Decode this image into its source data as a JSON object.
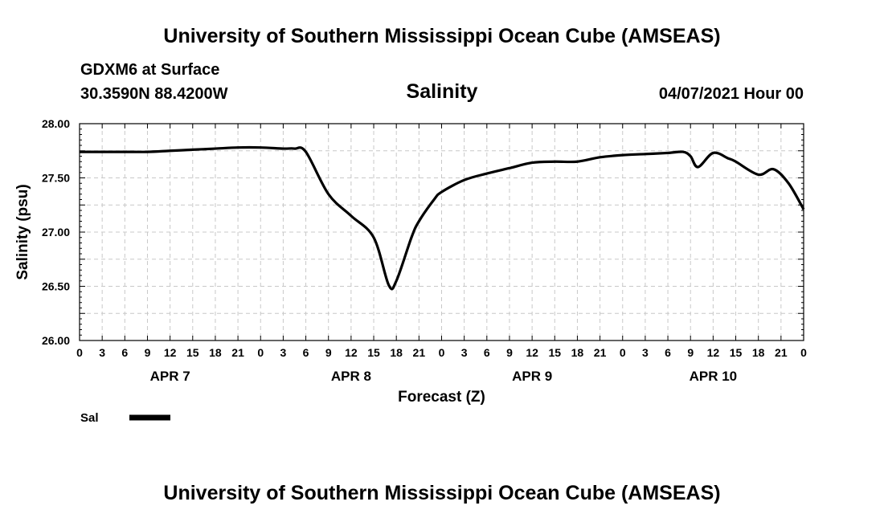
{
  "header": {
    "title": "University of Southern Mississippi Ocean Cube (AMSEAS)",
    "station": "GDXM6 at Surface",
    "coords": "30.3590N  88.4200W",
    "datetime": "04/07/2021 Hour 00"
  },
  "footer": {
    "title": "University of Southern Mississippi Ocean Cube (AMSEAS)"
  },
  "chart_data": {
    "type": "line",
    "title": "Salinity",
    "xlabel": "Forecast (Z)",
    "ylabel": "Salinity (psu)",
    "ylim": [
      26.0,
      28.0
    ],
    "yticks": [
      "26.00",
      "26.50",
      "27.00",
      "27.50",
      "28.00"
    ],
    "xlim_hours": [
      0,
      96
    ],
    "xtick_labels": [
      "0",
      "3",
      "6",
      "9",
      "12",
      "15",
      "18",
      "21",
      "0",
      "3",
      "6",
      "9",
      "12",
      "15",
      "18",
      "21",
      "0",
      "3",
      "6",
      "9",
      "12",
      "15",
      "18",
      "21",
      "0",
      "3",
      "6",
      "9",
      "12",
      "15",
      "18",
      "21",
      "0"
    ],
    "day_labels": [
      {
        "label": "APR 7",
        "center_hour": 12
      },
      {
        "label": "APR 8",
        "center_hour": 36
      },
      {
        "label": "APR 9",
        "center_hour": 60
      },
      {
        "label": "APR 10",
        "center_hour": 84
      }
    ],
    "grid": true,
    "legend_position": "bottom-left",
    "series": [
      {
        "name": "Sal",
        "color": "#000000",
        "x": [
          0,
          3,
          6,
          9,
          12,
          15,
          18,
          21,
          24,
          27,
          28.5,
          30,
          33,
          36,
          39,
          41,
          42,
          44,
          45,
          47,
          48,
          51,
          54,
          57,
          60,
          63,
          66,
          69,
          72,
          75,
          78,
          80,
          81,
          82,
          84,
          86,
          87,
          90,
          92,
          94,
          96
        ],
        "values": [
          27.74,
          27.74,
          27.74,
          27.74,
          27.75,
          27.76,
          27.77,
          27.78,
          27.78,
          27.77,
          27.77,
          27.74,
          27.35,
          27.15,
          26.95,
          26.51,
          26.55,
          26.95,
          27.1,
          27.3,
          27.37,
          27.48,
          27.54,
          27.59,
          27.64,
          27.65,
          27.65,
          27.69,
          27.71,
          27.72,
          27.73,
          27.74,
          27.7,
          27.6,
          27.73,
          27.68,
          27.65,
          27.53,
          27.58,
          27.45,
          27.21
        ]
      }
    ]
  }
}
